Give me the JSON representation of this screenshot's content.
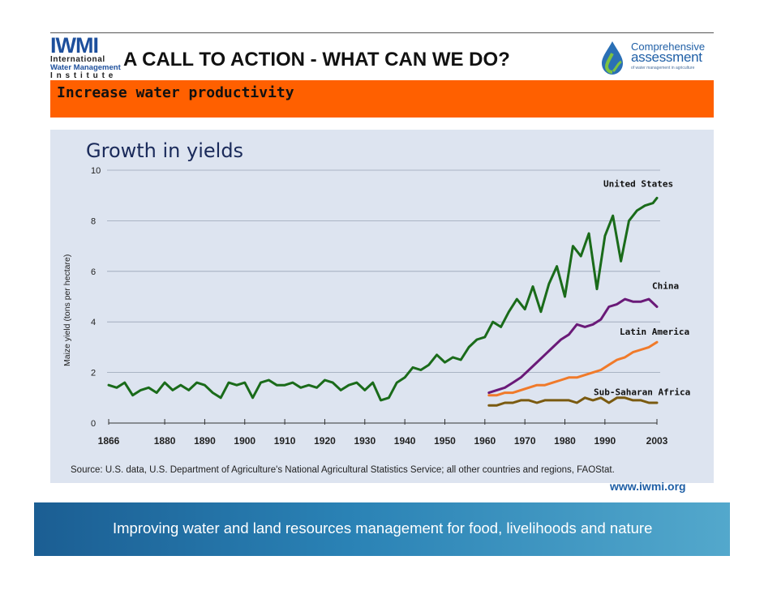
{
  "header": {
    "title": "A CALL TO ACTION - WHAT CAN WE DO?",
    "subtitle": "Increase water productivity",
    "iwmi_logo": {
      "wordmark": "IWMI",
      "line1": "International",
      "line2": "Water Management",
      "line3": "Institute"
    },
    "ca_logo": {
      "line1": "Comprehensive",
      "line2": "assessment",
      "line3": "of water management in agriculture"
    }
  },
  "footer": {
    "url": "www.iwmi.org",
    "tagline": "Improving water and land resources management for food, livelihoods and nature"
  },
  "colors": {
    "subtitle_bar": "#ff6000",
    "panel": "#dde4f0",
    "united_states": "#1a6b1a",
    "china": "#6a1a78",
    "latin_america": "#f07a2a",
    "sub_saharan_africa": "#7a5a10"
  },
  "chart_data": {
    "type": "line",
    "title": "Growth in yields",
    "ylabel": "Maize yield (tons per hectare)",
    "xlabel": "",
    "ylim": [
      0,
      10
    ],
    "yticks": [
      "0",
      "2",
      "4",
      "6",
      "8",
      "10"
    ],
    "xticks": [
      "1866",
      "1880",
      "1890",
      "1900",
      "1910",
      "1920",
      "1930",
      "1940",
      "1950",
      "1960",
      "1970",
      "1980",
      "1990",
      "2003"
    ],
    "grid": "horizontal",
    "source": "Source: U.S. data, U.S. Department of Agriculture's National Agricultural Statistics Service; all other countries and regions, FAOStat.",
    "series": [
      {
        "name": "United States",
        "color": "#1a6b1a",
        "x": [
          1866,
          1868,
          1870,
          1872,
          1874,
          1876,
          1878,
          1880,
          1882,
          1884,
          1886,
          1888,
          1890,
          1892,
          1894,
          1896,
          1898,
          1900,
          1902,
          1904,
          1906,
          1908,
          1910,
          1912,
          1914,
          1916,
          1918,
          1920,
          1922,
          1924,
          1926,
          1928,
          1930,
          1932,
          1934,
          1936,
          1938,
          1940,
          1942,
          1944,
          1946,
          1948,
          1950,
          1952,
          1954,
          1956,
          1958,
          1960,
          1962,
          1964,
          1966,
          1968,
          1970,
          1972,
          1974,
          1976,
          1978,
          1980,
          1982,
          1984,
          1986,
          1988,
          1990,
          1992,
          1994,
          1996,
          1998,
          2000,
          2002,
          2003
        ],
        "y": [
          1.5,
          1.4,
          1.6,
          1.1,
          1.3,
          1.4,
          1.2,
          1.6,
          1.3,
          1.5,
          1.3,
          1.6,
          1.5,
          1.2,
          1.0,
          1.6,
          1.5,
          1.6,
          1.0,
          1.6,
          1.7,
          1.5,
          1.5,
          1.6,
          1.4,
          1.5,
          1.4,
          1.7,
          1.6,
          1.3,
          1.5,
          1.6,
          1.3,
          1.6,
          0.9,
          1.0,
          1.6,
          1.8,
          2.2,
          2.1,
          2.3,
          2.7,
          2.4,
          2.6,
          2.5,
          3.0,
          3.3,
          3.4,
          4.0,
          3.8,
          4.4,
          4.9,
          4.5,
          5.4,
          4.4,
          5.5,
          6.2,
          5.0,
          7.0,
          6.6,
          7.5,
          5.3,
          7.4,
          8.2,
          6.4,
          8.0,
          8.4,
          8.6,
          8.7,
          8.9
        ]
      },
      {
        "name": "China",
        "color": "#6a1a78",
        "x": [
          1961,
          1963,
          1965,
          1967,
          1969,
          1971,
          1973,
          1975,
          1977,
          1979,
          1981,
          1983,
          1985,
          1987,
          1989,
          1991,
          1993,
          1995,
          1997,
          1999,
          2001,
          2003
        ],
        "y": [
          1.2,
          1.3,
          1.4,
          1.6,
          1.8,
          2.1,
          2.4,
          2.7,
          3.0,
          3.3,
          3.5,
          3.9,
          3.8,
          3.9,
          4.1,
          4.6,
          4.7,
          4.9,
          4.8,
          4.8,
          4.9,
          4.6
        ]
      },
      {
        "name": "Latin America",
        "color": "#f07a2a",
        "x": [
          1961,
          1963,
          1965,
          1967,
          1969,
          1971,
          1973,
          1975,
          1977,
          1979,
          1981,
          1983,
          1985,
          1987,
          1989,
          1991,
          1993,
          1995,
          1997,
          1999,
          2001,
          2003
        ],
        "y": [
          1.1,
          1.1,
          1.2,
          1.2,
          1.3,
          1.4,
          1.5,
          1.5,
          1.6,
          1.7,
          1.8,
          1.8,
          1.9,
          2.0,
          2.1,
          2.3,
          2.5,
          2.6,
          2.8,
          2.9,
          3.0,
          3.2
        ]
      },
      {
        "name": "Sub-Saharan Africa",
        "color": "#7a5a10",
        "x": [
          1961,
          1963,
          1965,
          1967,
          1969,
          1971,
          1973,
          1975,
          1977,
          1979,
          1981,
          1983,
          1985,
          1987,
          1989,
          1991,
          1993,
          1995,
          1997,
          1999,
          2001,
          2003
        ],
        "y": [
          0.7,
          0.7,
          0.8,
          0.8,
          0.9,
          0.9,
          0.8,
          0.9,
          0.9,
          0.9,
          0.9,
          0.8,
          1.0,
          0.9,
          1.0,
          0.8,
          1.0,
          1.0,
          0.9,
          0.9,
          0.8,
          0.8
        ]
      }
    ]
  }
}
